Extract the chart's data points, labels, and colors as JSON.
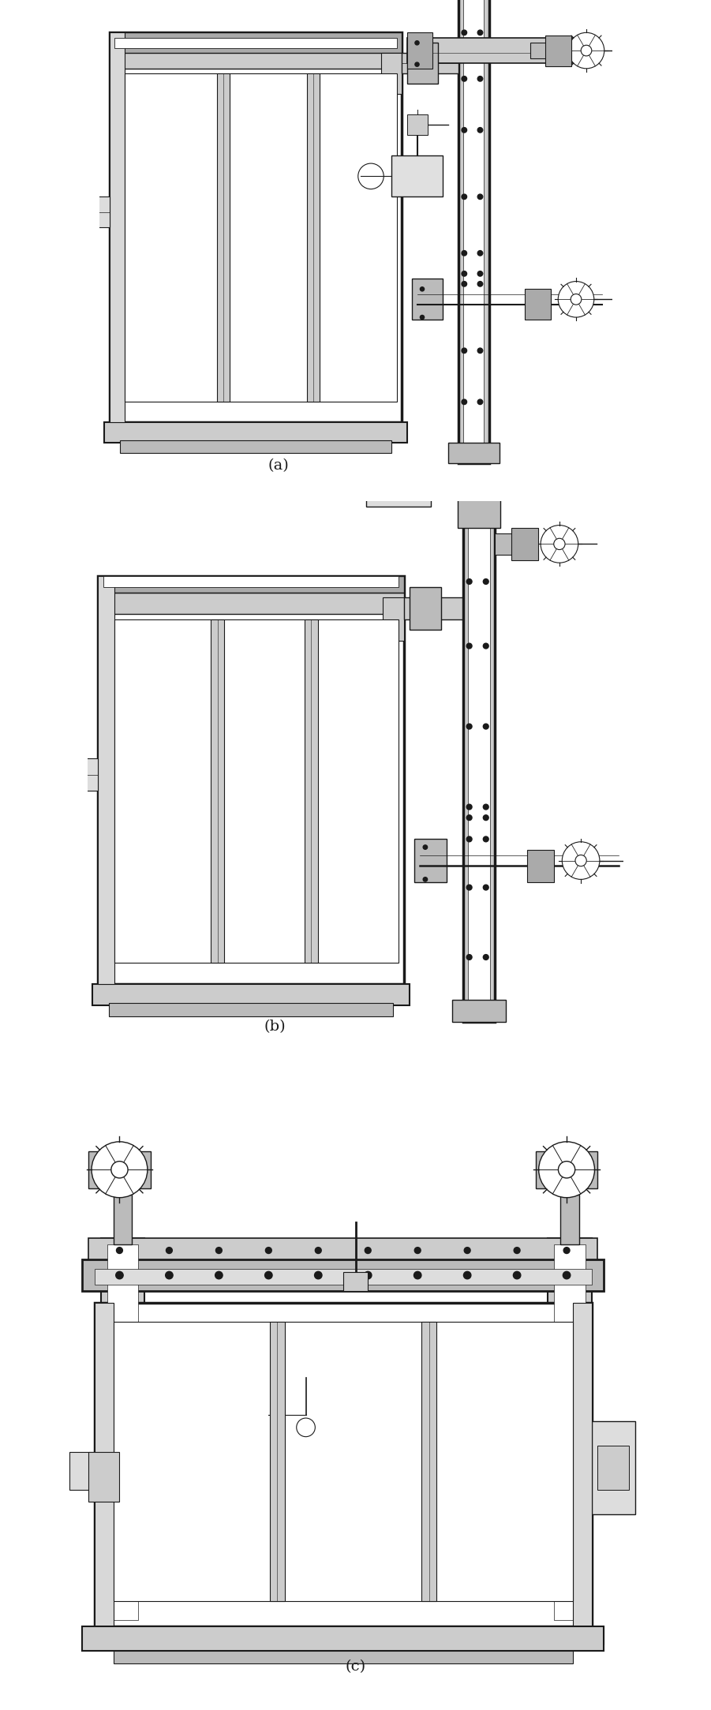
{
  "background_color": "#ffffff",
  "line_color": "#1a1a1a",
  "fig_width": 9.01,
  "fig_height": 21.67,
  "dpi": 100,
  "labels": [
    "(a)",
    "(b)",
    "(c)"
  ],
  "label_fontsize": 14
}
